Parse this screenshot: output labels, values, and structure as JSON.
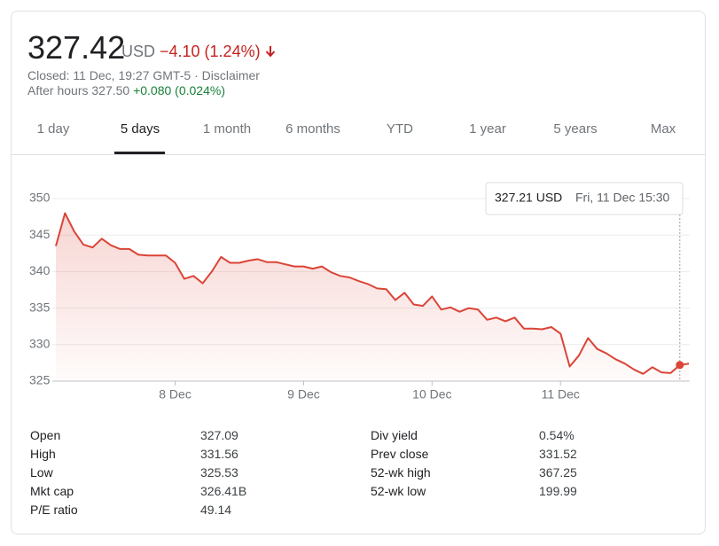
{
  "header": {
    "price": "327.42",
    "currency": "USD",
    "change": "−4.10 (1.24%)",
    "status": "Closed: 11 Dec, 19:27 GMT-5",
    "separator": "·",
    "disclaimer": "Disclaimer",
    "after_hours": "After hours 327.50",
    "after_hours_change": "+0.080 (0.024%)"
  },
  "tabs": {
    "items": [
      "1 day",
      "5 days",
      "1 month",
      "6 months",
      "YTD",
      "1 year",
      "5 years",
      "Max"
    ],
    "active": 1
  },
  "chart_data": {
    "type": "line",
    "color": "#db4437",
    "grid": true,
    "categories": [
      null,
      null,
      null,
      null,
      null,
      null,
      null,
      null,
      null,
      null,
      null,
      null,
      null,
      "8 Dec",
      null,
      null,
      null,
      null,
      null,
      null,
      null,
      null,
      null,
      null,
      null,
      null,
      null,
      "9 Dec",
      null,
      null,
      null,
      null,
      null,
      null,
      null,
      null,
      null,
      null,
      null,
      null,
      null,
      "10 Dec",
      null,
      null,
      null,
      null,
      null,
      null,
      null,
      null,
      null,
      null,
      null,
      null,
      null,
      "11 Dec",
      null,
      null,
      null,
      null,
      null,
      null,
      null,
      null,
      null,
      null,
      null,
      null,
      null,
      null
    ],
    "values": [
      343.5,
      348.0,
      345.5,
      343.7,
      343.3,
      344.5,
      343.6,
      343.1,
      343.1,
      342.3,
      342.2,
      342.2,
      342.2,
      341.2,
      339.0,
      339.4,
      338.4,
      340.0,
      342.0,
      341.2,
      341.2,
      341.5,
      341.7,
      341.3,
      341.3,
      341.0,
      340.7,
      340.7,
      340.4,
      340.7,
      339.9,
      339.4,
      339.2,
      338.7,
      338.3,
      337.7,
      337.6,
      336.1,
      337.1,
      335.5,
      335.3,
      336.6,
      334.8,
      335.1,
      334.5,
      335.0,
      334.8,
      333.4,
      333.7,
      333.2,
      333.7,
      332.2,
      332.2,
      332.1,
      332.4,
      331.5,
      327.0,
      328.5,
      330.9,
      329.4,
      328.8,
      328.0,
      327.4,
      326.6,
      326.0,
      326.9,
      326.2,
      326.1,
      327.21,
      327.4
    ],
    "ylim": [
      325,
      350
    ],
    "yticks": [
      325,
      330,
      335,
      340,
      345,
      350
    ],
    "tooltip": {
      "index": 68,
      "value": "327.21 USD",
      "date": "Fri, 11 Dec 15:30"
    }
  },
  "stats": {
    "left": [
      [
        "Open",
        "327.09"
      ],
      [
        "High",
        "331.56"
      ],
      [
        "Low",
        "325.53"
      ],
      [
        "Mkt cap",
        "326.41B"
      ],
      [
        "P/E ratio",
        "49.14"
      ]
    ],
    "right": [
      [
        "Div yield",
        "0.54%"
      ],
      [
        "Prev close",
        "331.52"
      ],
      [
        "52-wk high",
        "367.25"
      ],
      [
        "52-wk low",
        "199.99"
      ]
    ]
  }
}
